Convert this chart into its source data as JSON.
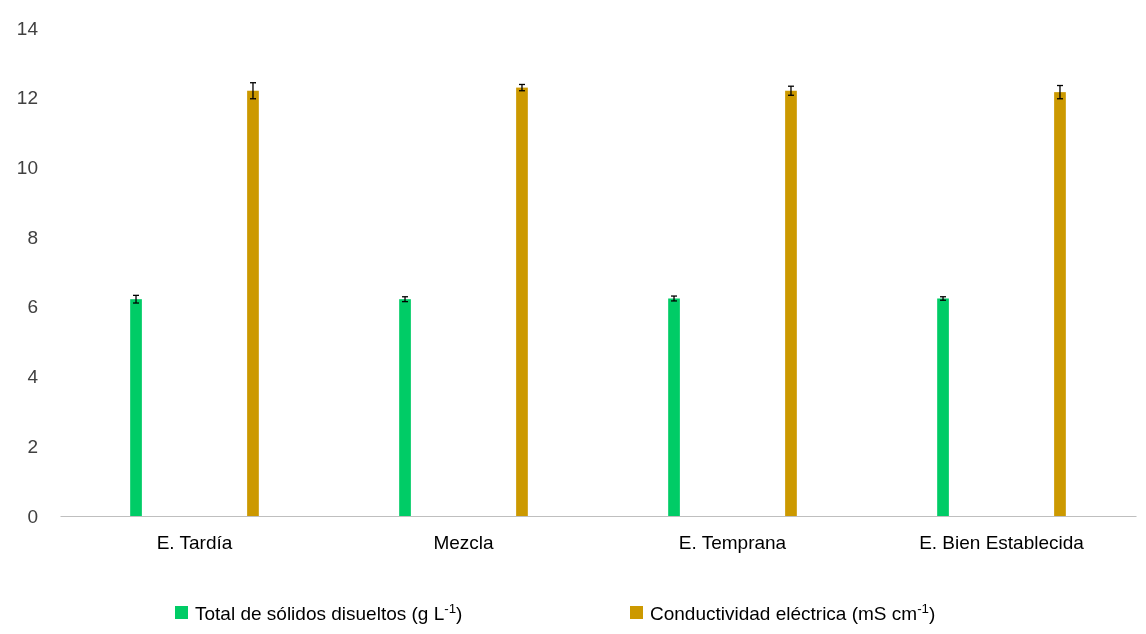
{
  "chart_data": {
    "type": "bar",
    "categories": [
      "E. Tardía",
      "Mezcla",
      "E. Temprana",
      "E. Bien Establecida"
    ],
    "series": [
      {
        "name": "Total de sólidos disueltos (g L$^{-1}$)",
        "color": "#00cc66",
        "values": [
          6.22,
          6.22,
          6.24,
          6.24
        ],
        "errors": [
          0.11,
          0.07,
          0.07,
          0.05
        ]
      },
      {
        "name": "Conductividad eléctrica (mS cm$^{-1}$)",
        "color": "#cc9900",
        "values": [
          12.2,
          12.29,
          12.2,
          12.16
        ],
        "errors": [
          0.23,
          0.09,
          0.13,
          0.19
        ]
      }
    ],
    "ylim": [
      0,
      14
    ],
    "yticks": [
      0,
      2,
      4,
      6,
      8,
      10,
      12,
      14
    ],
    "grid": false,
    "legend": "bottom"
  }
}
